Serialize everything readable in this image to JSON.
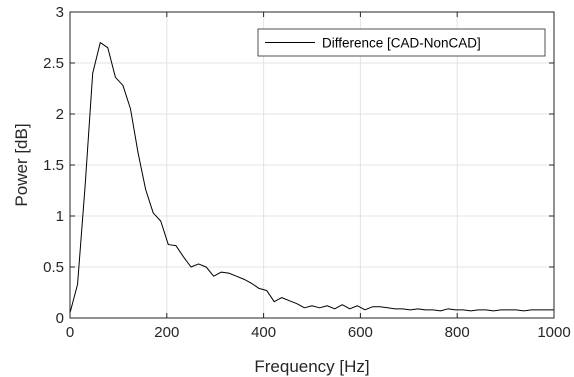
{
  "chart_data": {
    "type": "line",
    "xlabel": "Frequency [Hz]",
    "ylabel": "Power [dB]",
    "xlim": [
      0,
      1000
    ],
    "ylim": [
      0,
      3
    ],
    "x_ticks": [
      "0",
      "200",
      "400",
      "600",
      "800",
      "1000"
    ],
    "y_ticks": [
      "0",
      "0.5",
      "1",
      "1.5",
      "2",
      "2.5",
      "3"
    ],
    "grid": true,
    "legend_position": "top-right",
    "series": [
      {
        "name": "Difference [CAD-NonCAD]",
        "color": "#000000",
        "x": [
          0,
          15.6,
          31.3,
          46.9,
          62.5,
          78.1,
          93.8,
          109.4,
          125,
          140.6,
          156.3,
          171.9,
          187.5,
          203.1,
          218.8,
          234.4,
          250,
          265.6,
          281.3,
          296.9,
          312.5,
          328.1,
          343.8,
          359.4,
          375,
          390.6,
          406.3,
          421.9,
          437.5,
          453.1,
          468.8,
          484.4,
          500,
          515.6,
          531.3,
          546.9,
          562.5,
          578.1,
          593.8,
          609.4,
          625,
          640.6,
          656.3,
          671.9,
          687.5,
          703.1,
          718.8,
          734.4,
          750,
          765.6,
          781.3,
          796.9,
          812.5,
          828.1,
          843.8,
          859.4,
          875,
          890.6,
          906.3,
          921.9,
          937.5,
          953.1,
          968.8,
          984.4,
          1000
        ],
        "y": [
          0.05,
          0.33,
          1.3,
          2.4,
          2.7,
          2.65,
          2.36,
          2.28,
          2.05,
          1.62,
          1.26,
          1.03,
          0.95,
          0.72,
          0.71,
          0.6,
          0.5,
          0.53,
          0.5,
          0.41,
          0.45,
          0.44,
          0.41,
          0.38,
          0.34,
          0.29,
          0.27,
          0.16,
          0.2,
          0.17,
          0.14,
          0.1,
          0.12,
          0.1,
          0.12,
          0.09,
          0.13,
          0.09,
          0.12,
          0.08,
          0.11,
          0.11,
          0.1,
          0.09,
          0.09,
          0.08,
          0.09,
          0.08,
          0.08,
          0.07,
          0.09,
          0.08,
          0.08,
          0.07,
          0.08,
          0.08,
          0.07,
          0.08,
          0.08,
          0.08,
          0.07,
          0.08,
          0.08,
          0.08,
          0.08
        ]
      }
    ]
  }
}
